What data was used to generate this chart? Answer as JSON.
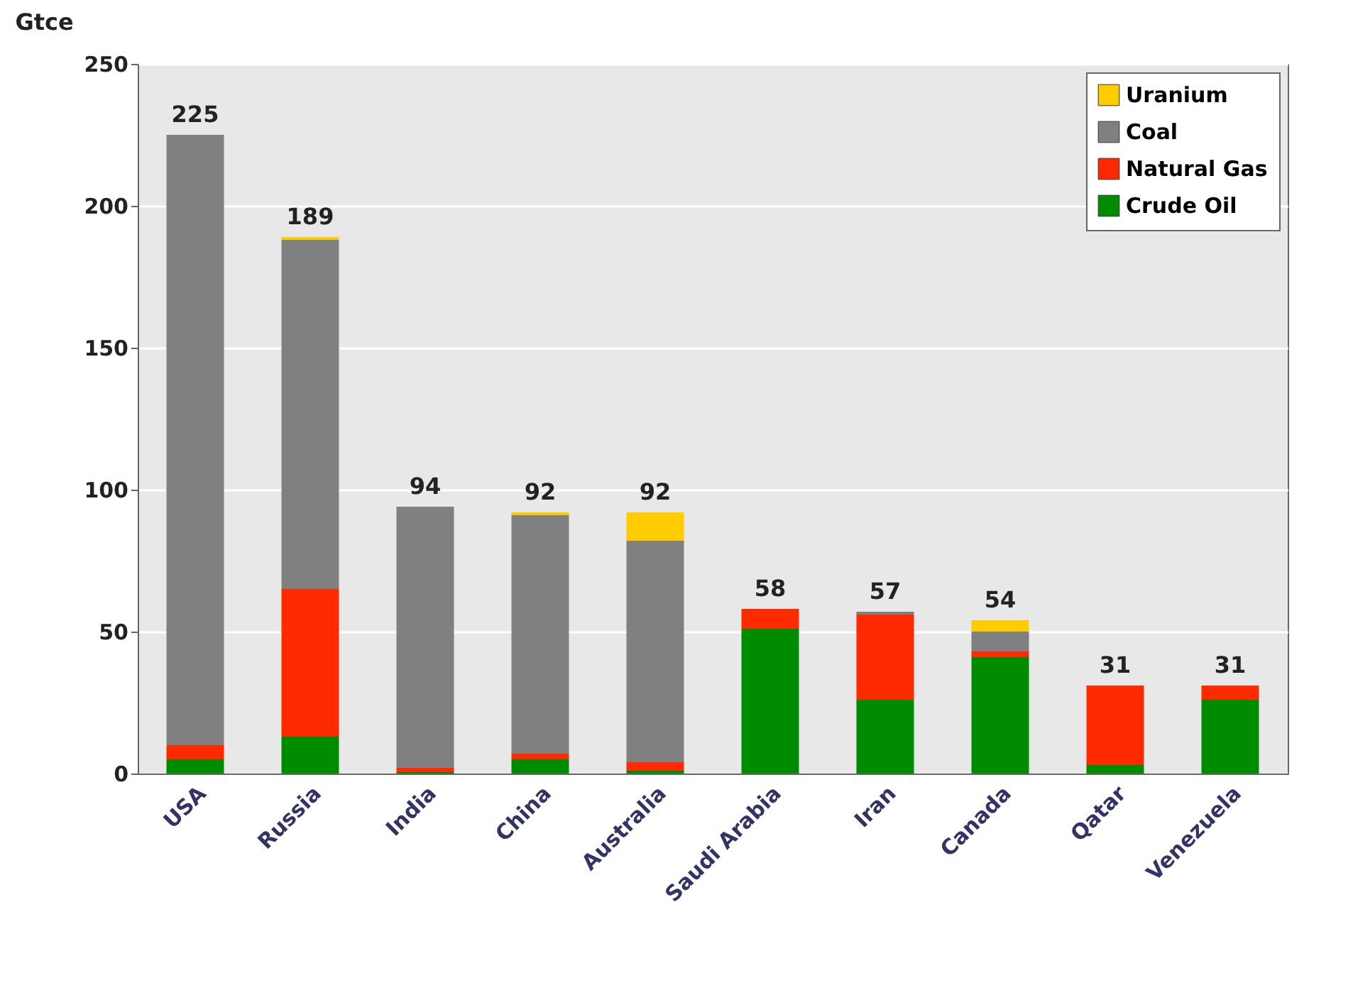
{
  "chart_data": {
    "type": "bar",
    "ylabel": "Gtce",
    "stacked": true,
    "categories": [
      "USA",
      "Russia",
      "India",
      "China",
      "Australia",
      "Saudi Arabia",
      "Iran",
      "Canada",
      "Qatar",
      "Venezuela"
    ],
    "series": [
      {
        "name": "Crude Oil",
        "color": "#008c00",
        "values": [
          5,
          13,
          0.5,
          5,
          1,
          51,
          26,
          41,
          3,
          26
        ]
      },
      {
        "name": "Natural Gas",
        "color": "#ff2a00",
        "values": [
          5,
          52,
          1.5,
          2,
          3,
          7,
          30,
          2,
          28,
          5
        ]
      },
      {
        "name": "Coal",
        "color": "#808080",
        "values": [
          215,
          123,
          92,
          84,
          78,
          0,
          1,
          7,
          0,
          0
        ]
      },
      {
        "name": "Uranium",
        "color": "#ffcc00",
        "values": [
          0,
          1,
          0,
          1,
          10,
          0,
          0,
          4,
          0,
          0
        ]
      }
    ],
    "totals": [
      "225",
      "189",
      "94",
      "92",
      "92",
      "58",
      "57",
      "54",
      "31",
      "31"
    ],
    "ylim": [
      0,
      250
    ],
    "yticks": [
      0,
      50,
      100,
      150,
      200,
      250
    ],
    "grid": "y",
    "legend": "top right"
  }
}
